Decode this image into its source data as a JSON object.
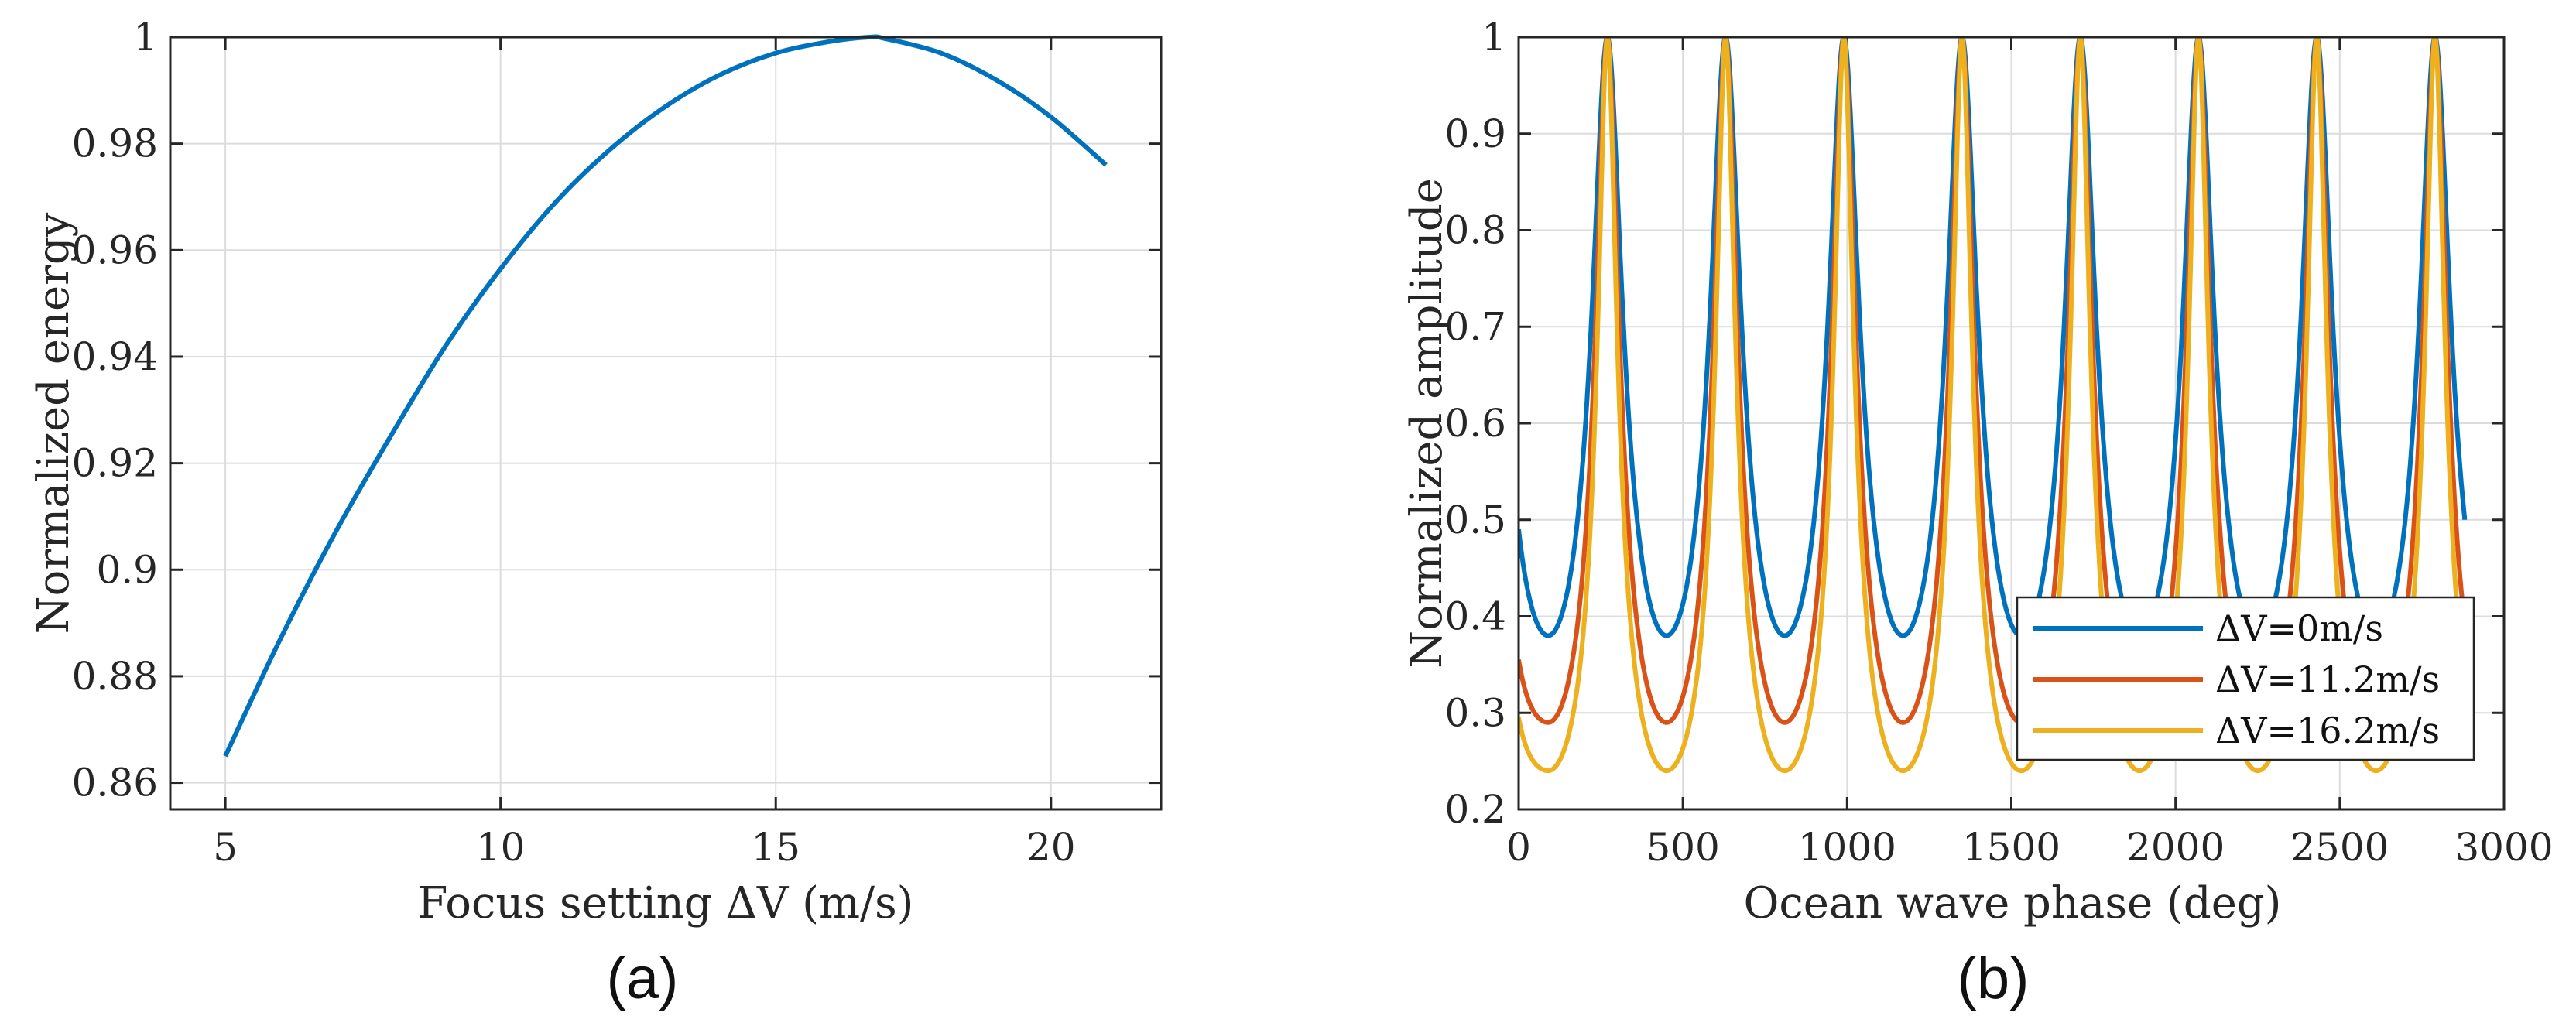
{
  "chart_data": [
    {
      "type": "line",
      "panel_label": "(a)",
      "xlabel": "Focus setting ΔV (m/s)",
      "ylabel": "Normalized energy",
      "xlim": [
        4,
        22
      ],
      "ylim": [
        0.855,
        1.0
      ],
      "grid": true,
      "xticks": [
        5,
        10,
        15,
        20
      ],
      "xtick_labels": [
        "5",
        "10",
        "15",
        "20"
      ],
      "yticks": [
        0.86,
        0.88,
        0.9,
        0.92,
        0.94,
        0.96,
        0.98,
        1.0
      ],
      "ytick_labels": [
        "0.86",
        "0.88",
        "0.9",
        "0.92",
        "0.94",
        "0.96",
        "0.98",
        "1"
      ],
      "series": [
        {
          "name": "Normalized energy",
          "color": "#0072BD",
          "x": [
            5,
            6,
            7,
            8,
            9,
            10,
            11,
            12,
            13,
            14,
            15,
            16,
            16.7,
            17,
            18,
            19,
            20,
            21
          ],
          "y": [
            0.865,
            0.887,
            0.907,
            0.925,
            0.942,
            0.9565,
            0.969,
            0.979,
            0.987,
            0.993,
            0.997,
            0.9992,
            1.0,
            0.9997,
            0.997,
            0.992,
            0.985,
            0.976
          ]
        }
      ]
    },
    {
      "type": "line",
      "panel_label": "(b)",
      "xlabel": "Ocean wave phase (deg)",
      "ylabel": "Normalized amplitude",
      "xlim": [
        0,
        3000
      ],
      "ylim": [
        0.2,
        1.0
      ],
      "grid": true,
      "xticks": [
        0,
        500,
        1000,
        1500,
        2000,
        2500,
        3000
      ],
      "xtick_labels": [
        "0",
        "500",
        "1000",
        "1500",
        "2000",
        "2500",
        "3000"
      ],
      "yticks": [
        0.2,
        0.3,
        0.4,
        0.5,
        0.6,
        0.7,
        0.8,
        0.9,
        1.0
      ],
      "ytick_labels": [
        "0.2",
        "0.3",
        "0.4",
        "0.5",
        "0.6",
        "0.7",
        "0.8",
        "0.9",
        "1"
      ],
      "period_deg": 360,
      "peak_phase_deg": 270,
      "x_end": 2880,
      "legend_position": "lower-right",
      "series": [
        {
          "name": "ΔV=0m/s",
          "color": "#0072BD",
          "min_value": 0.38,
          "start_value": 0.49,
          "end_value": 0.5
        },
        {
          "name": "ΔV=11.2m/s",
          "color": "#D95319",
          "min_value": 0.29,
          "start_value": 0.355
        },
        {
          "name": "ΔV=16.2m/s",
          "color": "#EDB120",
          "min_value": 0.24,
          "start_value": 0.295
        }
      ]
    }
  ]
}
